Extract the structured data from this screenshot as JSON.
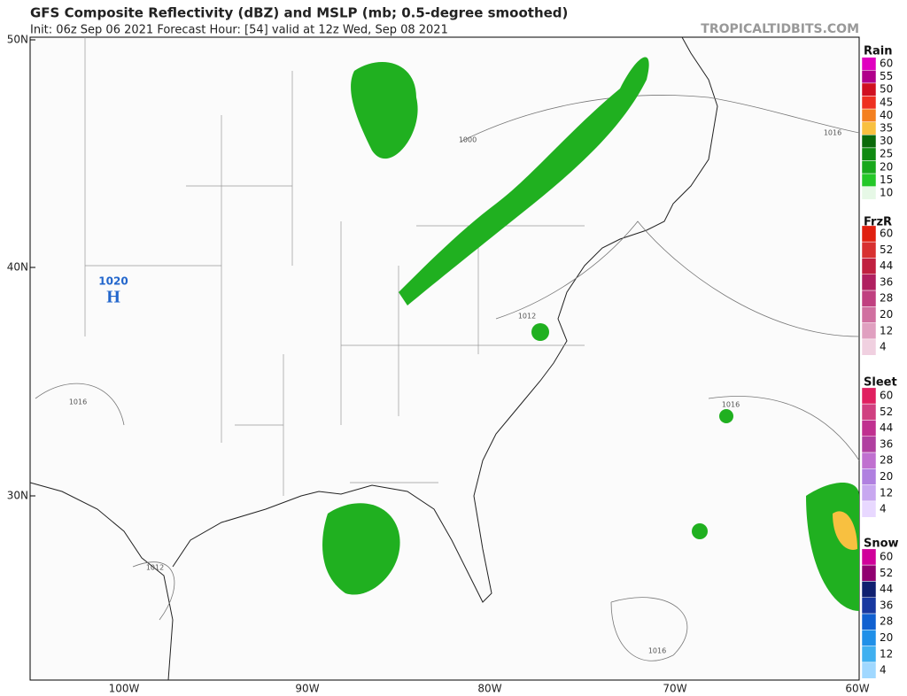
{
  "header": {
    "title": "GFS Composite Reflectivity (dBZ) and MSLP (mb; 0.5-degree smoothed)",
    "subtitle": "Init: 06z Sep 06 2021   Forecast Hour: [54]   valid at 12z Wed, Sep 08 2021",
    "site": "TROPICALTIDBITS.COM"
  },
  "map": {
    "lat_labels": [
      "50N",
      "40N",
      "30N"
    ],
    "lon_labels": [
      "100W",
      "90W",
      "80W",
      "70W",
      "60W"
    ],
    "isobar_labels": [
      "1000",
      "1016",
      "1012",
      "1016",
      "1016",
      "1012",
      "1016"
    ],
    "high": {
      "pressure": "1020",
      "symbol": "H"
    }
  },
  "legends": [
    {
      "title": "Rain",
      "labels": [
        "60",
        "55",
        "50",
        "45",
        "40",
        "35",
        "30",
        "25",
        "20",
        "15",
        "10"
      ],
      "colors": [
        "#e000c0",
        "#b0008a",
        "#d01020",
        "#ee3020",
        "#f48020",
        "#f8c040",
        "#0a6a0a",
        "#108a12",
        "#18a81c",
        "#24c828",
        "#e6f8e6"
      ]
    },
    {
      "title": "FrzR",
      "labels": [
        "60",
        "52",
        "44",
        "36",
        "28",
        "20",
        "12",
        "4"
      ],
      "colors": [
        "#e02010",
        "#d83030",
        "#c02040",
        "#b02060",
        "#c04080",
        "#d070a0",
        "#e0a0c0",
        "#f0d0e0"
      ]
    },
    {
      "title": "Sleet",
      "labels": [
        "60",
        "52",
        "44",
        "36",
        "28",
        "20",
        "12",
        "4"
      ],
      "colors": [
        "#e02060",
        "#d04080",
        "#c03090",
        "#b040a0",
        "#c070d0",
        "#b080e0",
        "#c8a8f0",
        "#e8d8ff"
      ]
    },
    {
      "title": "Snow",
      "labels": [
        "60",
        "52",
        "44",
        "36",
        "28",
        "20",
        "12",
        "4"
      ],
      "colors": [
        "#d0009a",
        "#900070",
        "#102070",
        "#1838a0",
        "#1060d0",
        "#2090e8",
        "#40b0f0",
        "#a0d8ff"
      ]
    }
  ]
}
